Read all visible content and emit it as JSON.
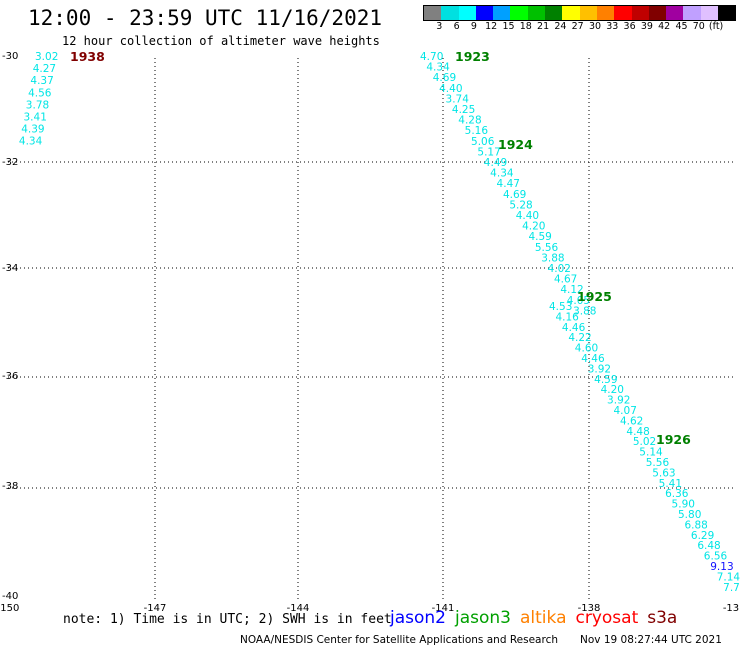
{
  "header": {
    "title": "12:00 - 23:59 UTC 11/16/2021",
    "subtitle": "12 hour collection of altimeter wave heights"
  },
  "colorbar": {
    "colors": [
      "#808080",
      "#00e0e0",
      "#00ffff",
      "#0000ff",
      "#00a0ff",
      "#00ff00",
      "#00c000",
      "#008000",
      "#ffff00",
      "#ffc000",
      "#ff8000",
      "#ff0000",
      "#c00000",
      "#800000",
      "#a000a0",
      "#c0a0ff",
      "#e0c0ff",
      "#000000"
    ],
    "labels": [
      "3",
      "6",
      "9",
      "12",
      "15",
      "18",
      "21",
      "24",
      "27",
      "30",
      "33",
      "36",
      "39",
      "42",
      "45",
      "70",
      "(ft)"
    ]
  },
  "axes": {
    "lon_labels": [
      "-150",
      "-147",
      "-144",
      "-141",
      "-138",
      "-13"
    ],
    "lat_labels": [
      "-30",
      "-32",
      "-34",
      "-36",
      "-38",
      "-40"
    ]
  },
  "tracks": [
    {
      "time": "1938",
      "color": "#800000",
      "values": [
        "3.02",
        "4.27",
        "4.37",
        "4.56",
        "3.78",
        "3.41",
        "4.39",
        "4.34"
      ]
    },
    {
      "time": "1923",
      "color": "#008000",
      "values": [
        "4.70",
        "4.34",
        "4.69",
        "4.40",
        "3.74",
        "4.25",
        "4.28",
        "5.16",
        "5.06",
        "5.17",
        "4.49",
        "4.34",
        "4.47",
        "4.69",
        "5.28",
        "4.40",
        "4.20",
        "4.59",
        "5.56",
        "3.88",
        "4.02",
        "4.67",
        "4.12",
        "4.05",
        "3.88"
      ]
    },
    {
      "time": "1924",
      "color": "#008000"
    },
    {
      "time": "1925",
      "color": "#008000",
      "values": [
        "4.53",
        "4.16",
        "4.46",
        "4.22",
        "4.60",
        "4.46",
        "3.92",
        "4.59",
        "4.20",
        "3.92",
        "4.07",
        "4.62",
        "4.48",
        "5.02",
        "5.14",
        "5.56",
        "5.63",
        "5.41",
        "6.36",
        "5.90",
        "5.80",
        "6.88",
        "6.29",
        "6.48",
        "6.56",
        "9.13",
        "7.14",
        "7.73"
      ]
    },
    {
      "time": "1926",
      "color": "#008000"
    }
  ],
  "footer": {
    "note": "note: 1) Time is in UTC; 2) SWH is in feet",
    "satellites": [
      {
        "name": "jason2",
        "color": "#0000ff"
      },
      {
        "name": "jason3",
        "color": "#00a000"
      },
      {
        "name": "altika",
        "color": "#ff8000"
      },
      {
        "name": "cryosat",
        "color": "#ff0000"
      },
      {
        "name": "s3a",
        "color": "#800000"
      }
    ],
    "credit": "NOAA/NESDIS Center for Satellite Applications and Research",
    "timestamp": "Nov 19 08:27:44 UTC 2021"
  }
}
